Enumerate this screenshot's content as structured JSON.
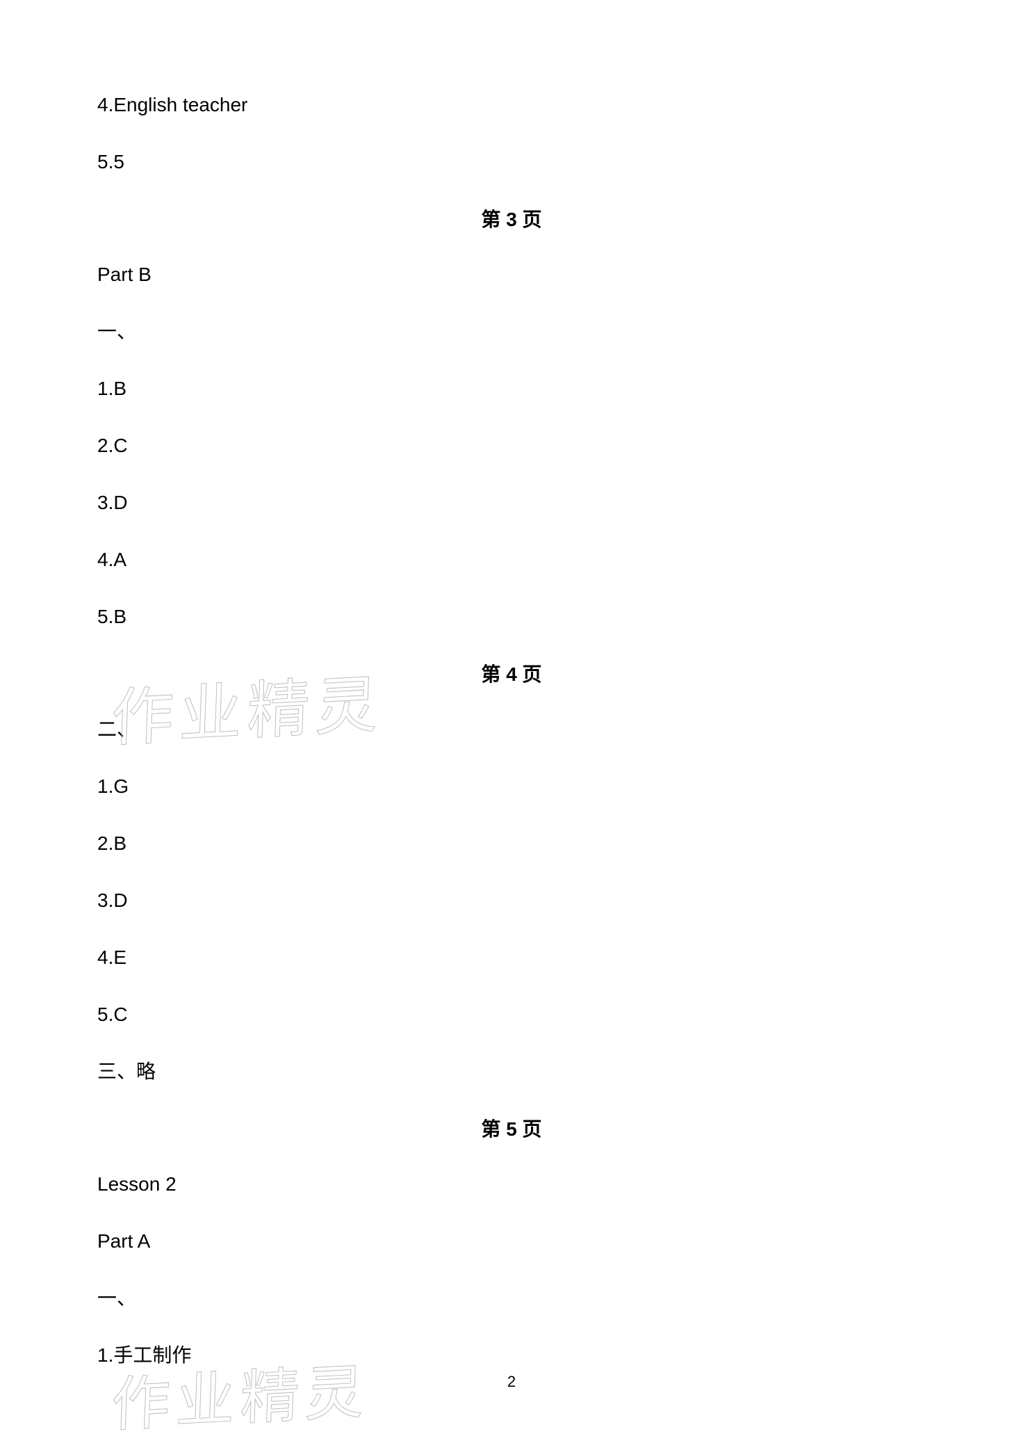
{
  "topLines": [
    "4.English teacher",
    "5.5"
  ],
  "page3": {
    "heading": "第 3 页",
    "lines": [
      "Part B",
      "一、",
      "1.B",
      "2.C",
      "3.D",
      "4.A",
      "5.B"
    ]
  },
  "page4": {
    "heading": "第 4 页",
    "lines": [
      "二、",
      "1.G",
      "2.B",
      "3.D",
      "4.E",
      "5.C",
      "三、略"
    ]
  },
  "page5": {
    "heading": "第 5 页",
    "lines": [
      "Lesson 2",
      "Part A",
      "一、",
      "1.手工制作"
    ]
  },
  "watermarkText": "作业精灵",
  "pageNumber": "2"
}
